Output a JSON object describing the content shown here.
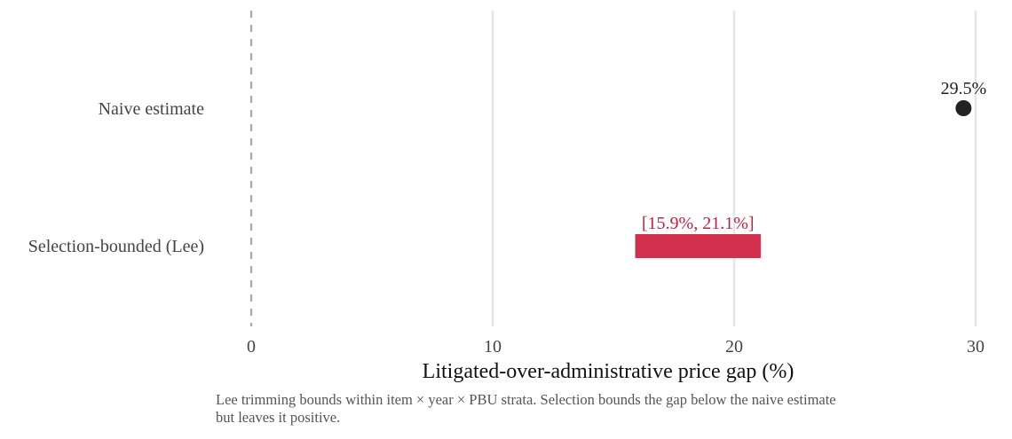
{
  "chart_data": {
    "type": "dot-and-interval",
    "xlabel": "Litigated-over-administrative price gap (%)",
    "ylabel": "",
    "xlim": [
      0,
      30
    ],
    "xticks": [
      0,
      10,
      20,
      30
    ],
    "tick_labels": [
      "0",
      "10",
      "20",
      "30"
    ],
    "grid": "vertical",
    "reference_line": {
      "x": 0,
      "style": "dashed"
    },
    "categories": [
      "Naive estimate",
      "Selection-bounded (Lee)"
    ],
    "point": {
      "category": "Naive estimate",
      "value": 29.5,
      "label": "29.5%"
    },
    "interval": {
      "category": "Selection-bounded (Lee)",
      "low": 15.9,
      "high": 21.1,
      "label": "[15.9%, 21.1%]"
    },
    "colors": {
      "point": "#222222",
      "interval": "#d1304f",
      "interval_label": "#c0223f",
      "grid": "#e6e6e6",
      "reference": "#aaaaaa"
    }
  },
  "caption": "Lee trimming bounds within item × year × PBU strata. Selection bounds the gap below the naive estimate but leaves it positive."
}
